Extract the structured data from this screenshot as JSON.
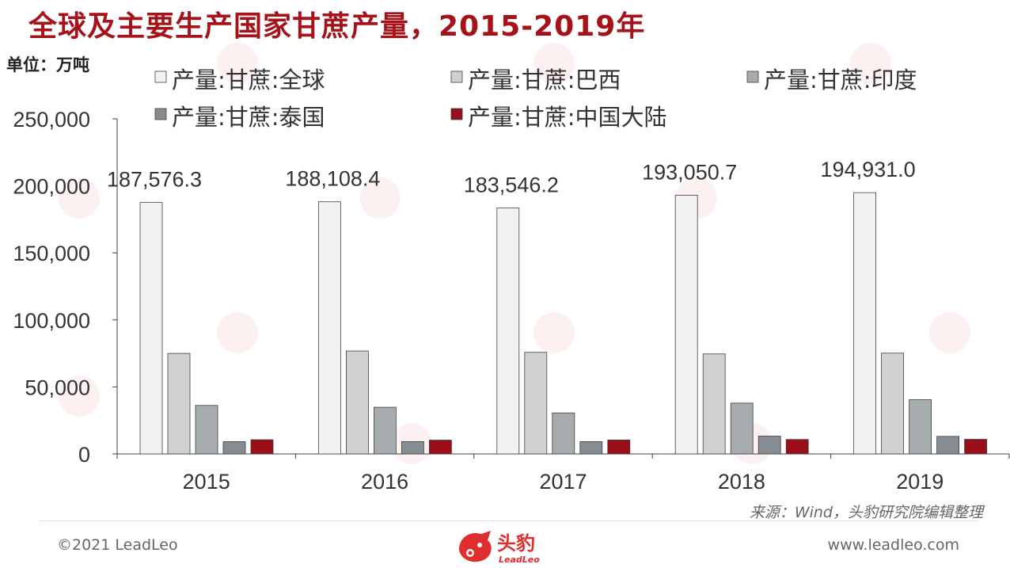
{
  "title": "全球及主要生产国家甘蔗产量，2015-2019年",
  "unit_label": "单位：万吨",
  "source": "来源：Wind，头豹研究院编辑整理",
  "footer": {
    "copyright": "©2021 LeadLeo",
    "website": "www.leadleo.com",
    "logo_text": "头豹",
    "logo_subtext": "LeadLeo"
  },
  "colors": {
    "title": "#a5121a",
    "brand_red": "#e02d2d"
  },
  "chart_data": {
    "type": "bar",
    "categories": [
      "2015",
      "2016",
      "2017",
      "2018",
      "2019"
    ],
    "ylim": [
      0,
      250000
    ],
    "yticks": [
      0,
      50000,
      100000,
      150000,
      200000,
      250000
    ],
    "ytick_labels": [
      "0",
      "50,000",
      "100,000",
      "150,000",
      "200,000",
      "250,000"
    ],
    "legend_position": "top",
    "series": [
      {
        "name": "产量:甘蔗:全球",
        "color": "#f2f2f2",
        "values": [
          187576.3,
          188108.4,
          183546.2,
          193050.7,
          194931.0
        ]
      },
      {
        "name": "产量:甘蔗:巴西",
        "color": "#d0d0d0",
        "values": [
          75000,
          76800,
          75800,
          74600,
          75200
        ]
      },
      {
        "name": "产量:甘蔗:印度",
        "color": "#a6abae",
        "values": [
          36200,
          34800,
          30600,
          37900,
          40500
        ]
      },
      {
        "name": "产量:甘蔗:泰国",
        "color": "#868d92",
        "values": [
          9200,
          9200,
          9200,
          13300,
          13100
        ]
      },
      {
        "name": "产量:甘蔗:中国大陆",
        "color": "#9a0f17",
        "values": [
          10600,
          10300,
          10400,
          10800,
          10900
        ]
      }
    ],
    "data_labels": [
      "187,576.3",
      "188,108.4",
      "183,546.2",
      "193,050.7",
      "194,931.0"
    ]
  }
}
